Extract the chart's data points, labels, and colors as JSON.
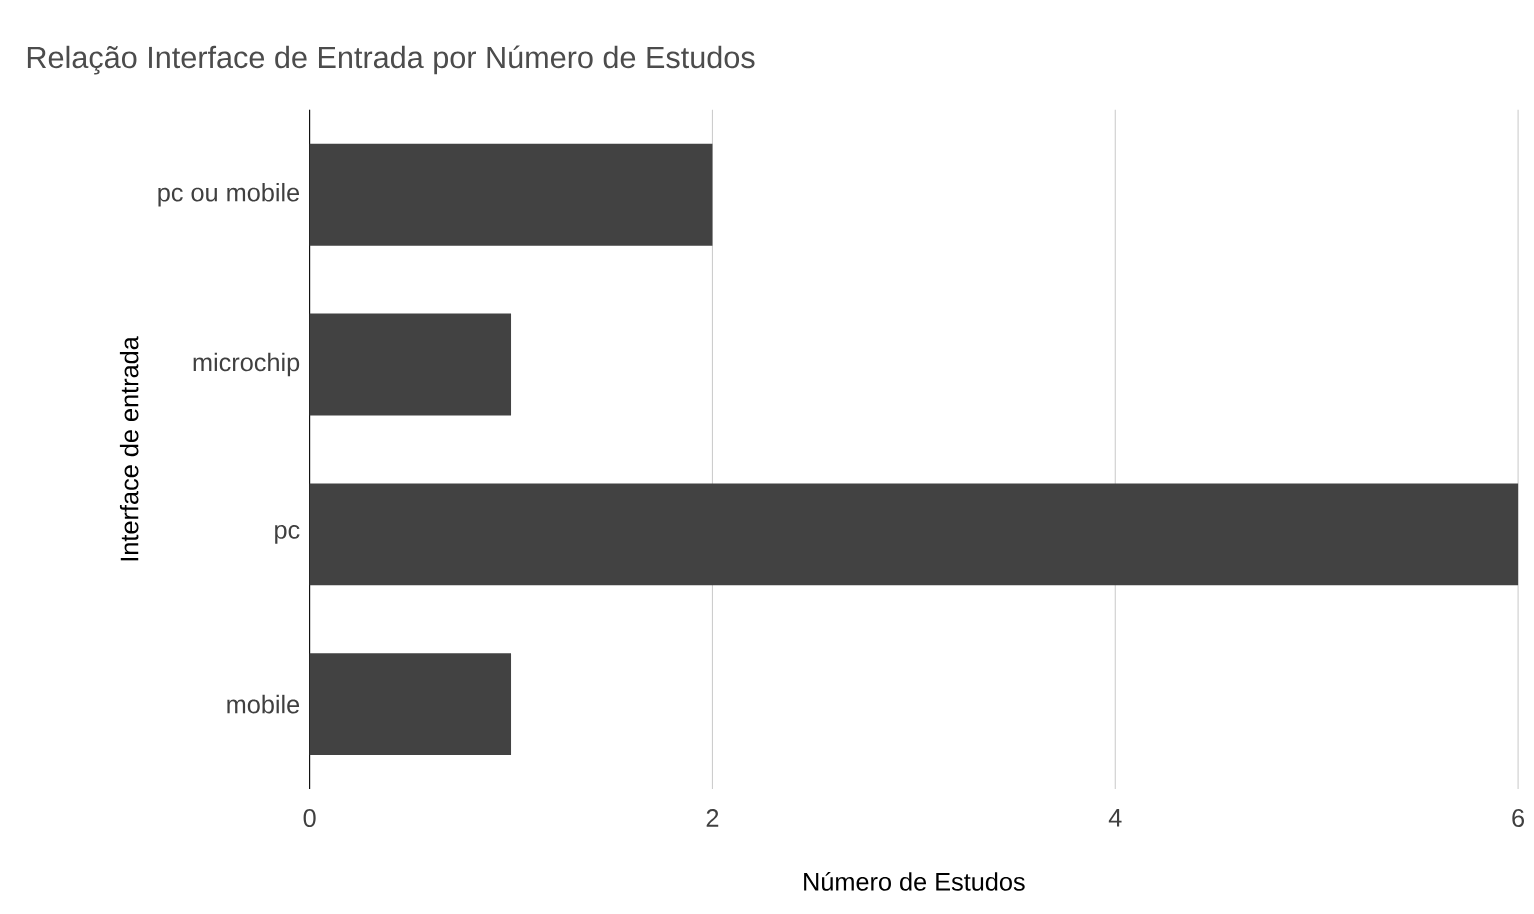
{
  "chart_data": {
    "type": "bar",
    "orientation": "horizontal",
    "title": "Relação Interface de Entrada por Número de Estudos",
    "xlabel": "Número de Estudos",
    "ylabel": "Interface de entrada",
    "categories": [
      "pc ou mobile",
      "microchip",
      "pc",
      "mobile"
    ],
    "values": [
      2,
      1,
      6,
      1
    ],
    "color": "#424242",
    "xlim": [
      0,
      6
    ],
    "xticks": [
      0,
      2,
      4,
      6
    ],
    "grid": "x"
  }
}
